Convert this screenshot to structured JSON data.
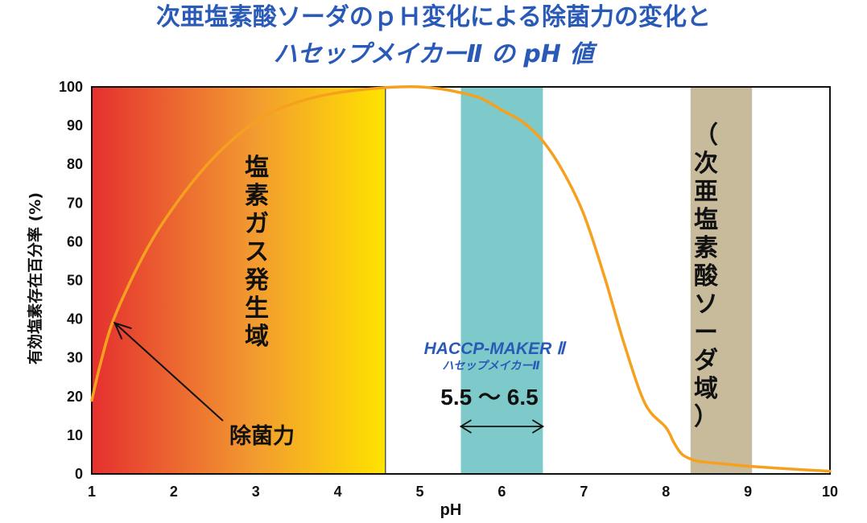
{
  "chart_data": {
    "type": "line",
    "title": "次亜塩素酸ソーダのｐＨ変化による除菌力の変化と",
    "subtitle": "ハセップメイカーⅡ の pH 値",
    "xlabel": "pH",
    "ylabel": "有効塩素存在百分率 (%)",
    "xlim": [
      1,
      10
    ],
    "ylim": [
      0,
      100
    ],
    "x_ticks": [
      "1",
      "2",
      "3",
      "4",
      "5",
      "6",
      "7",
      "8",
      "9",
      "10"
    ],
    "y_ticks": [
      "0",
      "10",
      "20",
      "30",
      "40",
      "50",
      "60",
      "70",
      "80",
      "90",
      "100"
    ],
    "grid": false,
    "series": [
      {
        "name": "除菌力",
        "x": [
          1.0,
          1.1,
          1.25,
          1.5,
          1.75,
          2.0,
          2.25,
          2.5,
          2.75,
          3.0,
          3.25,
          3.5,
          3.75,
          4.0,
          4.25,
          4.5,
          4.75,
          5.0,
          5.25,
          5.5,
          5.75,
          6.0,
          6.25,
          6.5,
          6.75,
          7.0,
          7.25,
          7.5,
          7.75,
          8.0,
          8.1,
          8.2,
          8.35,
          8.5,
          8.75,
          9.0,
          9.5,
          10.0
        ],
        "y": [
          19,
          28,
          39,
          51,
          61,
          69,
          76,
          82,
          87,
          91,
          94,
          96,
          97.5,
          98.5,
          99.2,
          99.7,
          100,
          100,
          99.5,
          98.5,
          97,
          94,
          91,
          86,
          78,
          67,
          51,
          33,
          18,
          12,
          8,
          5,
          3.5,
          3,
          2.5,
          2,
          1.3,
          0.7
        ]
      }
    ],
    "regions": [
      {
        "label": "塩素ガス発生域",
        "x_from": 1,
        "x_to": 4.58,
        "fill": "gradient-red-yellow"
      },
      {
        "label": "HACCP-MAKER Ⅱ",
        "x_from": 5.5,
        "x_to": 6.5,
        "fill": "#7ecaca"
      },
      {
        "label": "（次亜塩素酸ソーダ域）",
        "x_from": 8.3,
        "x_to": 9.05,
        "fill": "#c7bb9b"
      }
    ],
    "annotations": {
      "germicidal_label": "除菌力",
      "arrow_target": [
        1.28,
        39
      ],
      "brand_name": "HACCP-MAKER Ⅱ",
      "brand_kana": "ハセップメイカーⅡ",
      "range_label": "5.5 〜 6.5",
      "range_x": [
        5.5,
        6.5
      ]
    }
  },
  "colors": {
    "title": "#2a5ab8",
    "curve": "#f5a11f",
    "gradient_start": "#e5302f",
    "gradient_mid": "#f29a30",
    "gradient_end": "#ffe300",
    "haccp_band": "#7ecaca",
    "hypochlorite_band": "#c7bb9b"
  }
}
